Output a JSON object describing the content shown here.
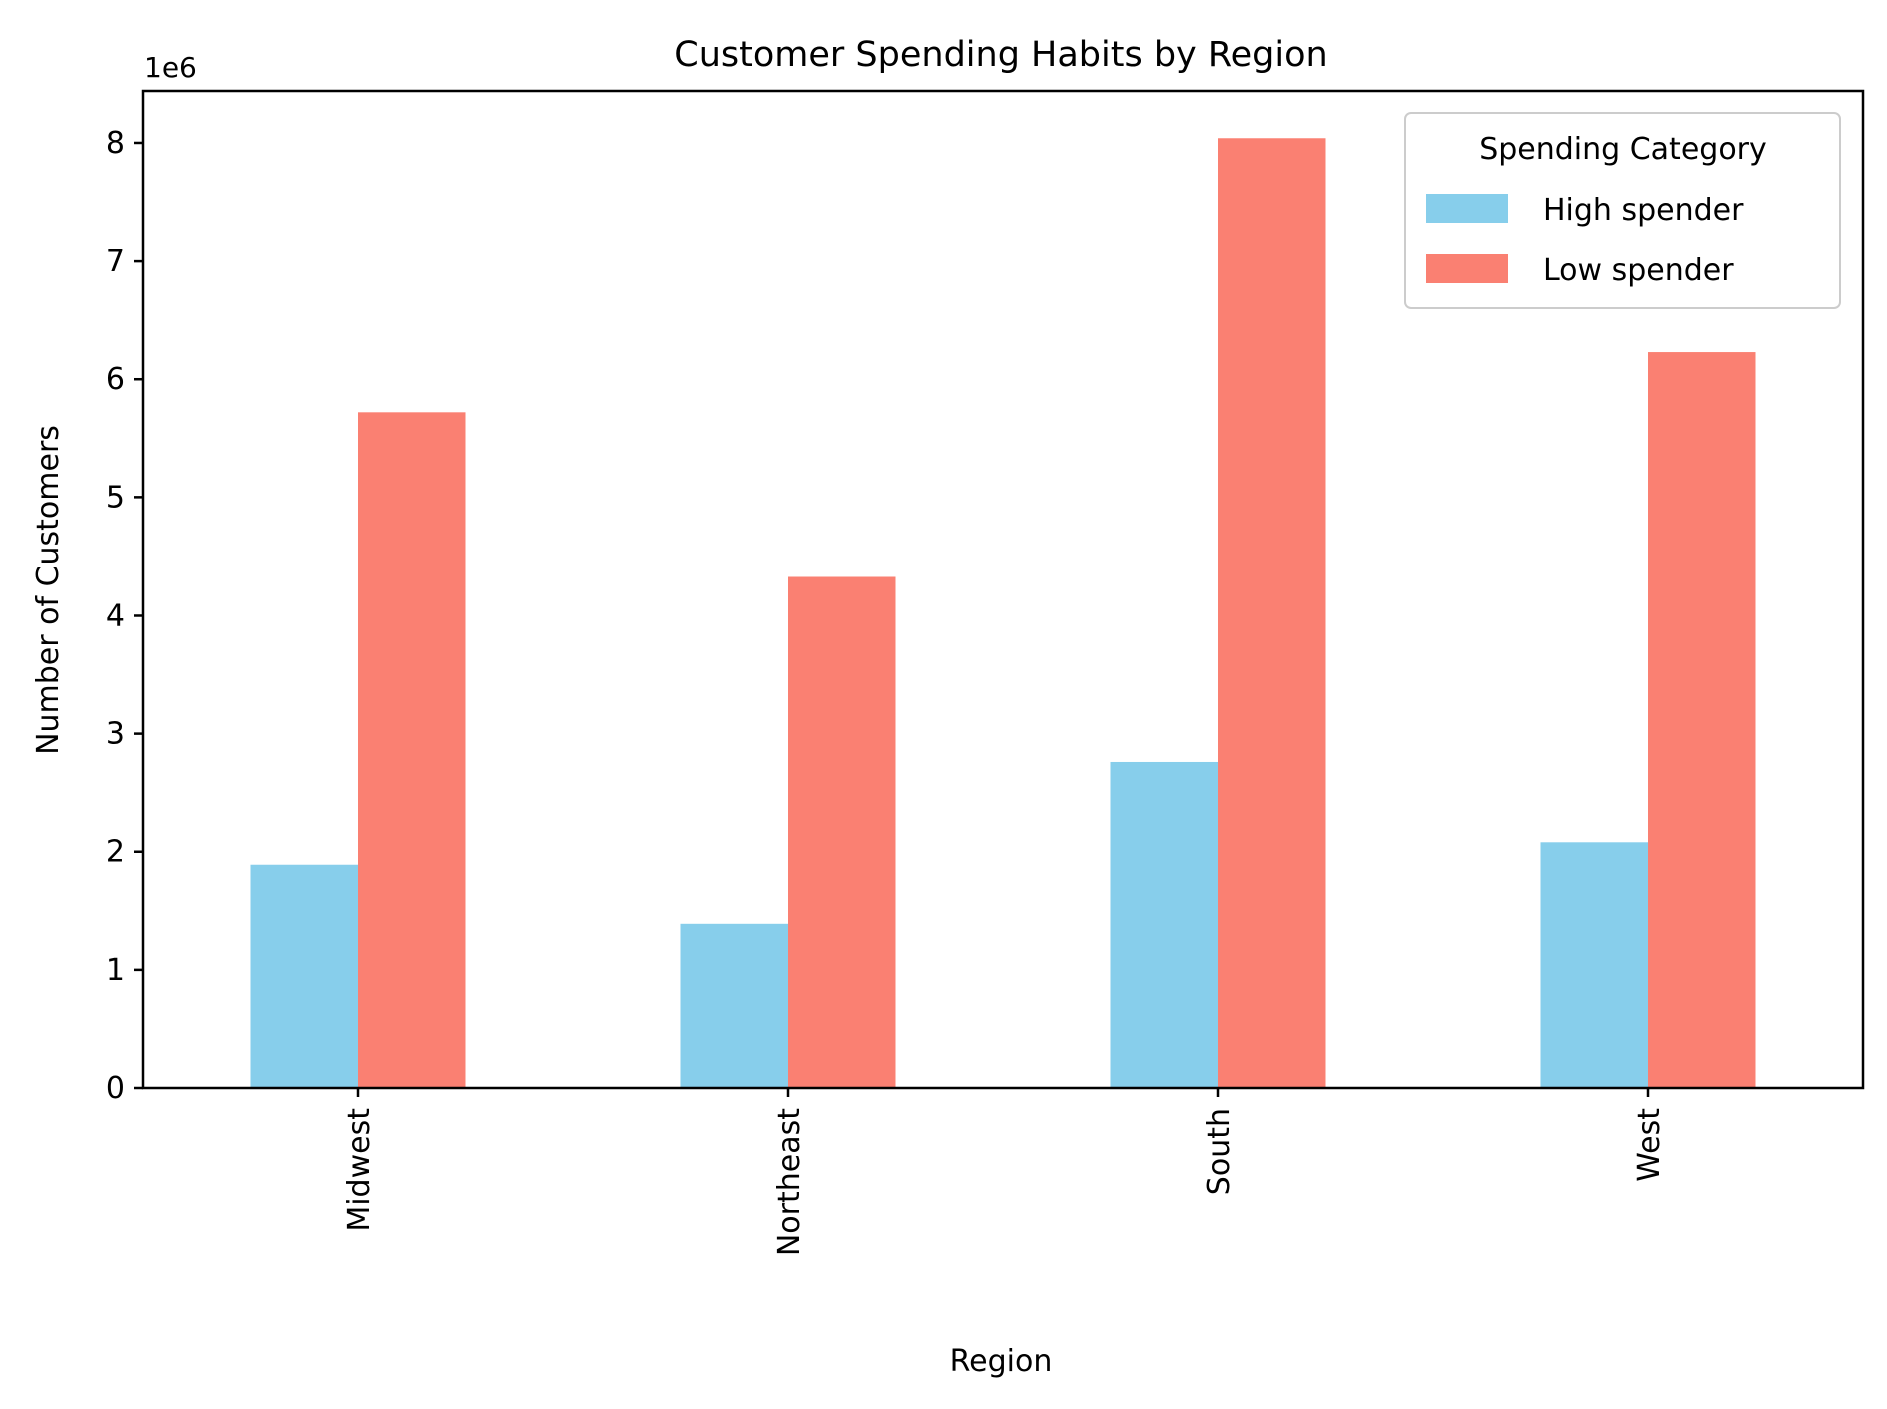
{
  "chart_data": {
    "type": "bar",
    "title": "Customer Spending Habits by Region",
    "xlabel": "Region",
    "ylabel": "Number of Customers",
    "scale_label": "1e6",
    "categories": [
      "Midwest",
      "Northeast",
      "South",
      "West"
    ],
    "series": [
      {
        "name": "High spender",
        "color": "#87CEEB",
        "values": [
          1890000,
          1390000,
          2760000,
          2080000
        ]
      },
      {
        "name": "Low spender",
        "color": "#FA8072",
        "values": [
          5720000,
          4330000,
          8040000,
          6230000
        ]
      }
    ],
    "ylim": [
      0,
      8440000
    ],
    "yticks": [
      0,
      1,
      2,
      3,
      4,
      5,
      6,
      7,
      8
    ],
    "ytick_multiplier": 1000000,
    "legend": {
      "title": "Spending Category",
      "placement": "top-right"
    },
    "grid": false
  }
}
